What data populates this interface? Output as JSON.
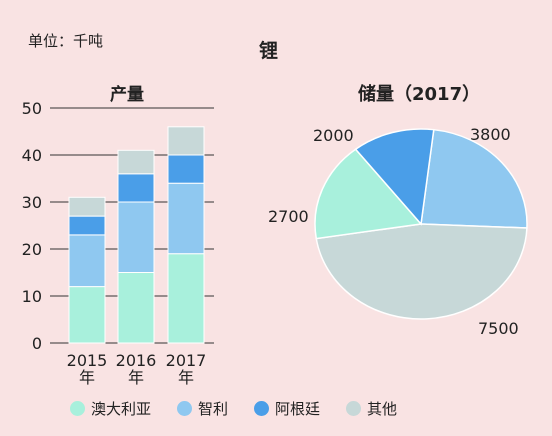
{
  "unit_label": "单位：千吨",
  "main_title": "锂",
  "colors": {
    "australia": "#a8f0dc",
    "chile": "#8fc8f0",
    "argentina": "#4a9ee8",
    "other": "#c7d8d8",
    "axis_line": "#333333"
  },
  "legend": [
    {
      "name": "澳大利亚",
      "color": "#a8f0dc"
    },
    {
      "name": "智利",
      "color": "#8fc8f0"
    },
    {
      "name": "阿根廷",
      "color": "#4a9ee8"
    },
    {
      "name": "其他",
      "color": "#c7d8d8"
    }
  ],
  "chart_data": [
    {
      "type": "bar",
      "stacked": true,
      "title": "产量",
      "categories": [
        "2015\n年",
        "2016\n年",
        "2017\n年"
      ],
      "series": [
        {
          "name": "澳大利亚",
          "values": [
            12,
            15,
            19
          ]
        },
        {
          "name": "智利",
          "values": [
            11,
            15,
            15
          ]
        },
        {
          "name": "阿根廷",
          "values": [
            4,
            6,
            6
          ]
        },
        {
          "name": "其他",
          "values": [
            4,
            5,
            6
          ]
        }
      ],
      "ylim": [
        0,
        50
      ],
      "yticks": [
        0,
        10,
        20,
        30,
        40,
        50
      ],
      "grid": true
    },
    {
      "type": "pie",
      "title": "储量（2017）",
      "slices": [
        {
          "name": "智利",
          "value": 3800
        },
        {
          "name": "其他",
          "value": 7500
        },
        {
          "name": "澳大利亚",
          "value": 2700
        },
        {
          "name": "阿根廷",
          "value": 2000
        }
      ]
    }
  ]
}
